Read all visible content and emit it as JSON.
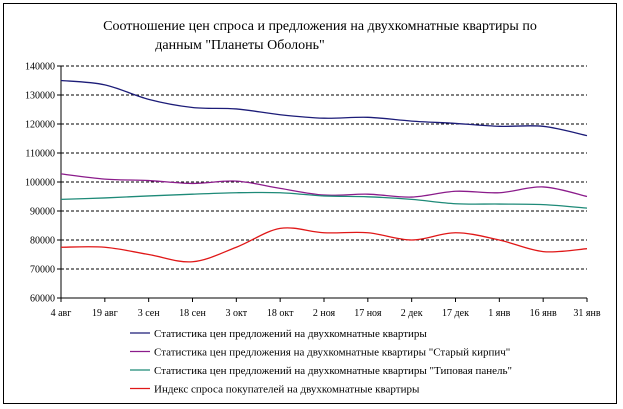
{
  "chart_data": {
    "type": "line",
    "title": "Соотношение цен спроса и предложения на двухкомнатные квартиры     по данным \"Планеты Оболонь\"",
    "title_lines": [
      "Соотношение цен спроса и предложения на двухкомнатные квартиры     по",
      "данным \"Планеты Оболонь\""
    ],
    "xlabel": "",
    "ylabel": "",
    "ylim": [
      60000,
      140000
    ],
    "yticks": [
      60000,
      70000,
      80000,
      90000,
      100000,
      110000,
      120000,
      130000,
      140000
    ],
    "grid": true,
    "legend_position": "bottom",
    "categories": [
      "4 авг",
      "19 авг",
      "3 сен",
      "18 сен",
      "3 окт",
      "18 окт",
      "2 ноя",
      "17 ноя",
      "2 дек",
      "17 дек",
      "1 янв",
      "16 янв",
      "31 янв"
    ],
    "series": [
      {
        "name": "Статистика цен предложений на двухкомнатные квартиры",
        "color": "#1c1c78",
        "values": [
          135000,
          133500,
          128500,
          125700,
          125200,
          123200,
          122000,
          122300,
          121000,
          120200,
          119200,
          119200,
          116000
        ]
      },
      {
        "name": "Статистика цен предложения на двухкомнатные квартиры \"Старый кирпич\"",
        "color": "#8b1c8b",
        "values": [
          102800,
          101000,
          100500,
          99500,
          100300,
          97800,
          95500,
          95800,
          94800,
          96800,
          96300,
          98300,
          95000
        ]
      },
      {
        "name": "Статистика цен предложений на двухкомнатные квартиры \"Типовая панель\"",
        "color": "#1e8a78",
        "values": [
          94000,
          94500,
          95200,
          95800,
          96300,
          96300,
          95200,
          94900,
          94000,
          92500,
          92400,
          92200,
          91000
        ]
      },
      {
        "name": "Индекс спроса покупателей на двухкомнатные квартиры",
        "color": "#e01818",
        "values": [
          77500,
          77500,
          75000,
          72500,
          77500,
          84000,
          82500,
          82500,
          80000,
          82500,
          80000,
          76000,
          77000
        ]
      }
    ]
  }
}
